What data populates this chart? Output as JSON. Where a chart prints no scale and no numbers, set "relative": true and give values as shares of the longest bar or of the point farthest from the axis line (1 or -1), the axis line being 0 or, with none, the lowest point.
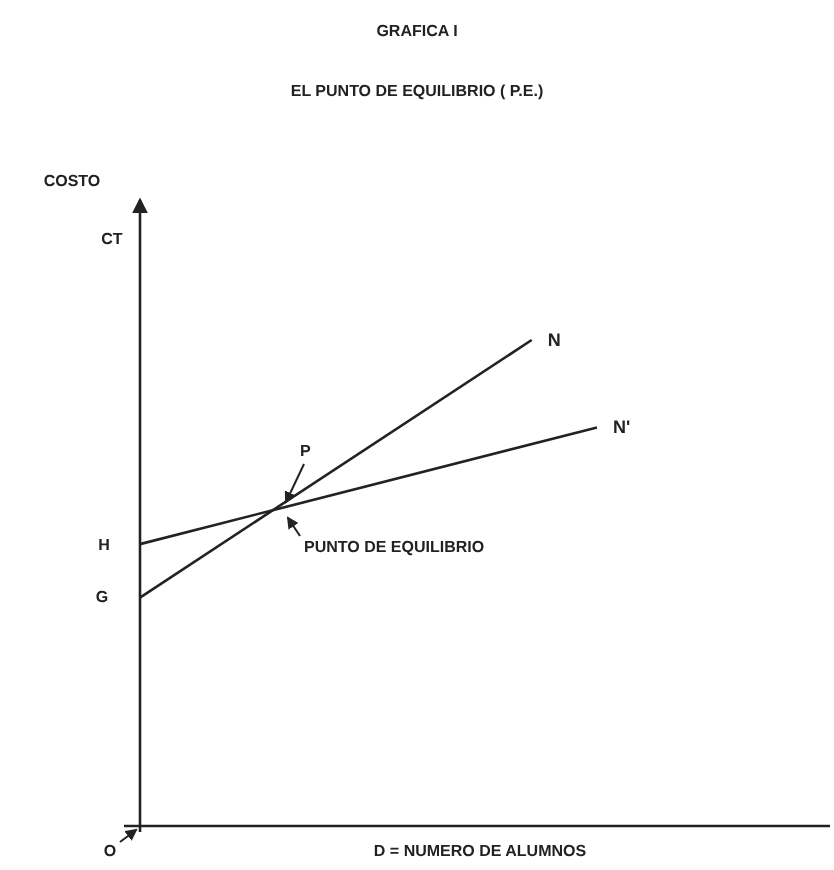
{
  "chart_data": {
    "type": "line",
    "relative": true,
    "title": "GRAFICA I",
    "subtitle": "EL PUNTO DE EQUILIBRIO ( P.E.)",
    "xlabel": "D = NUMERO DE ALUMNOS",
    "marker": "none",
    "line_style": "solid",
    "categories": [
      null,
      null,
      null,
      null,
      null,
      null,
      null,
      null,
      null,
      null,
      null
    ],
    "series": [
      {
        "name": "N",
        "color": "#222222",
        "values": [
          0.47,
          null,
          null,
          null,
          null,
          null,
          1,
          null,
          null,
          null,
          null
        ]
      },
      {
        "name": "N'",
        "color": "#222222",
        "values": [
          0.58,
          null,
          null,
          null,
          null,
          null,
          null,
          0.82,
          null,
          null,
          null
        ]
      }
    ],
    "annotations": [
      "COSTO",
      "CT",
      "H",
      "G",
      "P",
      "PUNTO DE EQUILIBRIO",
      "O"
    ]
  }
}
